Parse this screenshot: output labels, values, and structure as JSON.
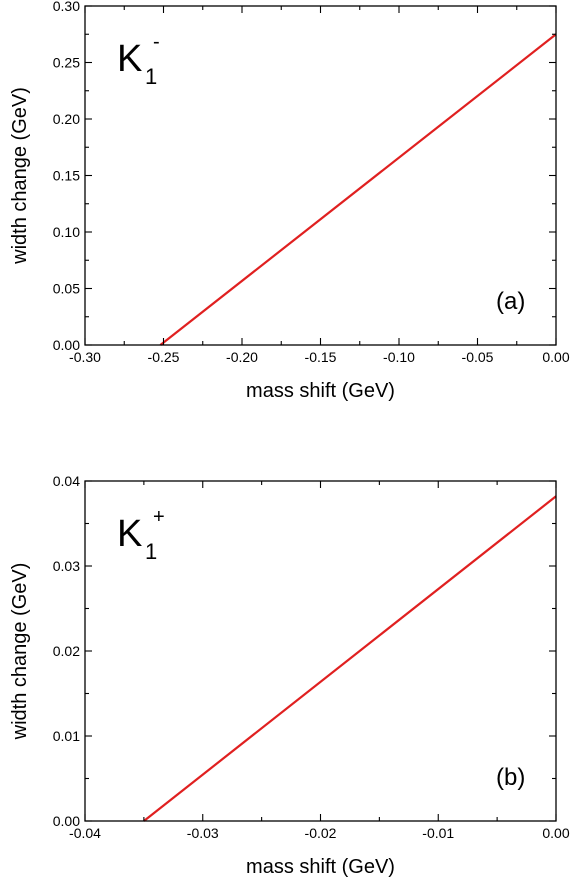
{
  "chart_data": [
    {
      "type": "line",
      "panel_label": "(a)",
      "particle": {
        "symbol": "K",
        "subscript": "1",
        "superscript": "-"
      },
      "xlabel": "mass shift (GeV)",
      "ylabel": "width change (GeV)",
      "xlim": [
        -0.3,
        0.0
      ],
      "ylim": [
        0.0,
        0.3
      ],
      "x_ticks": [
        "-0.30",
        "-0.25",
        "-0.20",
        "-0.15",
        "-0.10",
        "-0.05",
        "0.00"
      ],
      "y_ticks": [
        "0.00",
        "0.05",
        "0.10",
        "0.15",
        "0.20",
        "0.25",
        "0.30"
      ],
      "grid": false,
      "series": [
        {
          "color": "#e02020",
          "x": [
            -0.252,
            0.0
          ],
          "y": [
            0.0,
            0.275
          ]
        }
      ]
    },
    {
      "type": "line",
      "panel_label": "(b)",
      "particle": {
        "symbol": "K",
        "subscript": "1",
        "superscript": "+"
      },
      "xlabel": "mass shift (GeV)",
      "ylabel": "width change (GeV)",
      "xlim": [
        -0.04,
        0.0
      ],
      "ylim": [
        0.0,
        0.04
      ],
      "x_ticks": [
        "-0.04",
        "-0.03",
        "-0.02",
        "-0.01",
        "0.00"
      ],
      "y_ticks": [
        "0.00",
        "0.01",
        "0.02",
        "0.03",
        "0.04"
      ],
      "grid": false,
      "series": [
        {
          "color": "#e02020",
          "x": [
            -0.035,
            0.0
          ],
          "y": [
            0.0,
            0.0382
          ]
        }
      ]
    }
  ]
}
